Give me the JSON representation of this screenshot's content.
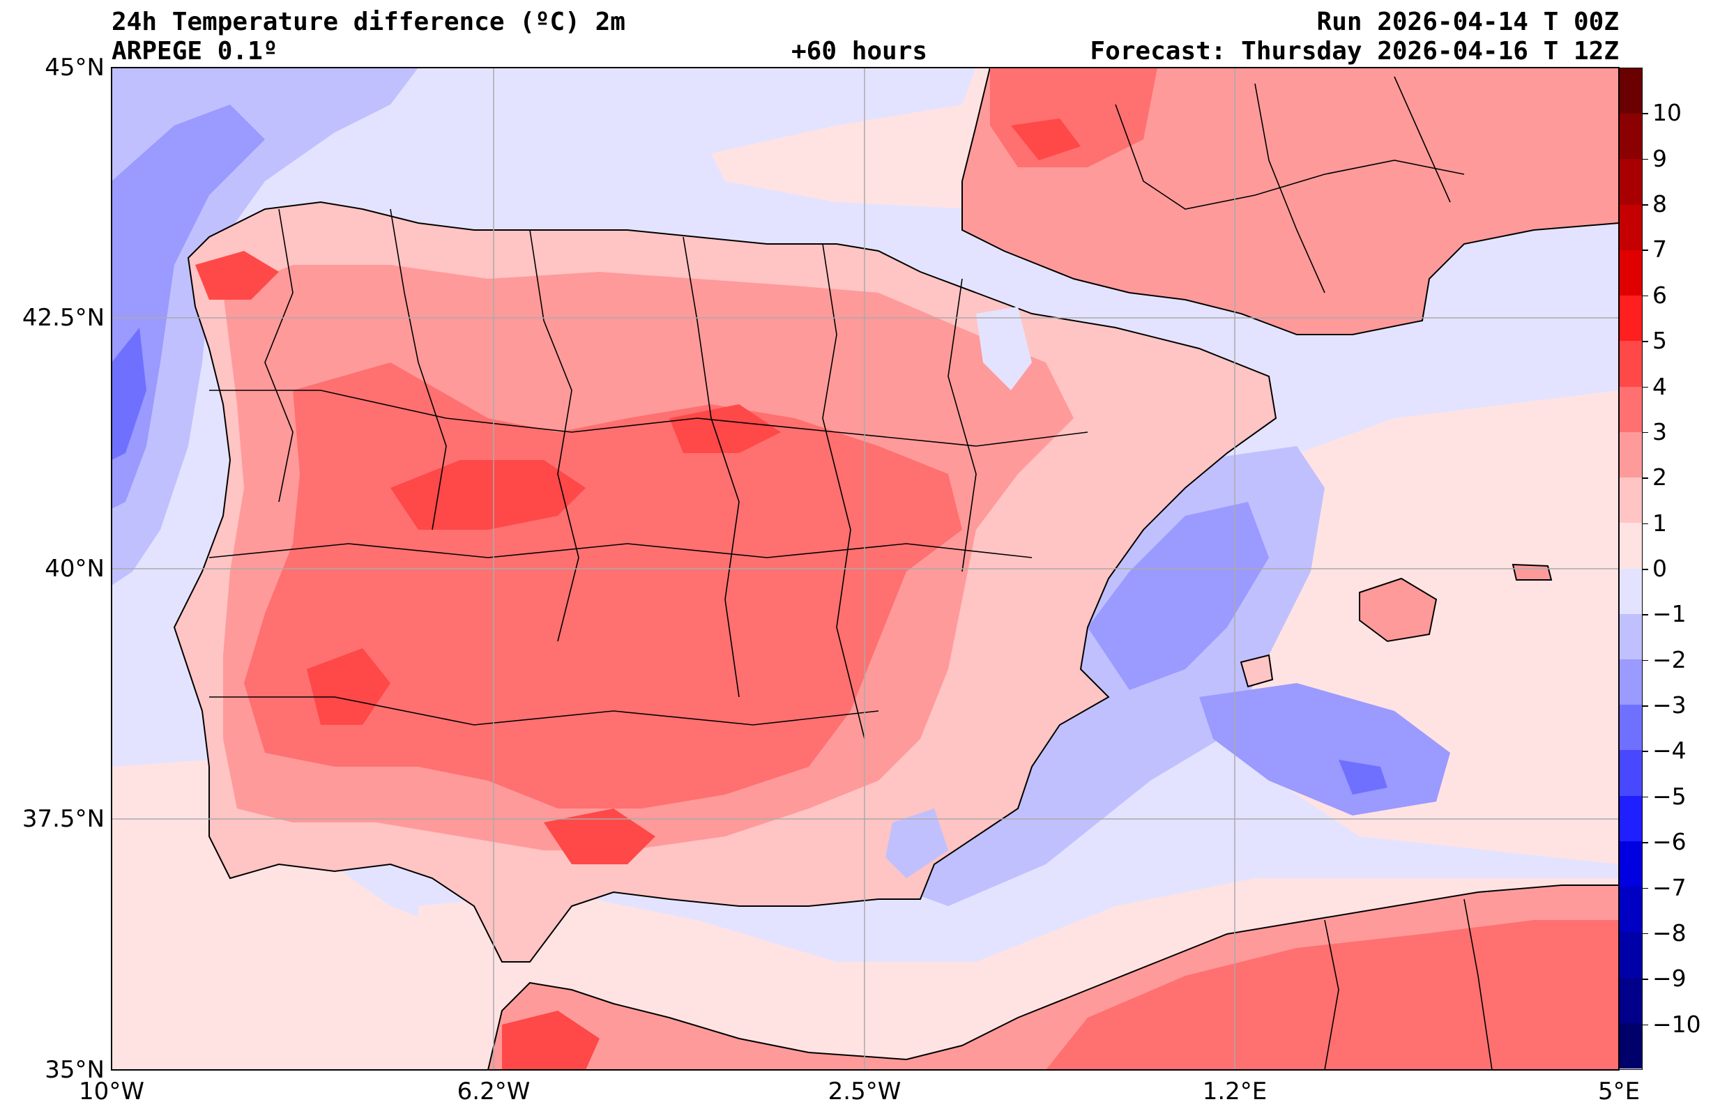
{
  "header": {
    "title": "24h Temperature difference (ºC) 2m",
    "model": "ARPEGE 0.1º",
    "lead": "+60 hours",
    "run": "Run 2026-04-14 T 00Z",
    "forecast": "Forecast: Thursday 2026-04-16 T 12Z"
  },
  "axes": {
    "x_ticks": [
      "10°W",
      "6.2°W",
      "2.5°W",
      "1.2°E",
      "5°E"
    ],
    "y_ticks": [
      "45°N",
      "42.5°N",
      "40°N",
      "37.5°N",
      "35°N"
    ]
  },
  "colorbar": {
    "ticks": [
      "10",
      "9",
      "8",
      "7",
      "6",
      "5",
      "4",
      "3",
      "2",
      "1",
      "0",
      "−1",
      "−2",
      "−3",
      "−4",
      "−5",
      "−6",
      "−7",
      "−8",
      "−9",
      "−10"
    ],
    "levels_top_to_bottom": [
      "#6b0000",
      "#8b0000",
      "#a80000",
      "#c40000",
      "#e00000",
      "#ff1f1f",
      "#ff4848",
      "#ff7070",
      "#ff9a9a",
      "#ffc4c4",
      "#ffe3e3",
      "#e3e3ff",
      "#c0c0ff",
      "#9a9aff",
      "#7070ff",
      "#4848ff",
      "#1f1fff",
      "#0000e0",
      "#0000c4",
      "#0000a8",
      "#00008b",
      "#00006b"
    ]
  },
  "colors": {
    "sea_neutral": "#e3e3ff",
    "land_base": "#ffc4c4",
    "warm_mid": "#ff9a9a",
    "warm_strong": "#ff7070",
    "warm_peak": "#ff4848",
    "cool_light": "#c0c0ff",
    "cool_mid": "#9a9aff",
    "cool_strong": "#7070ff",
    "coast": "#000000",
    "grid": "#aaaaaa"
  }
}
